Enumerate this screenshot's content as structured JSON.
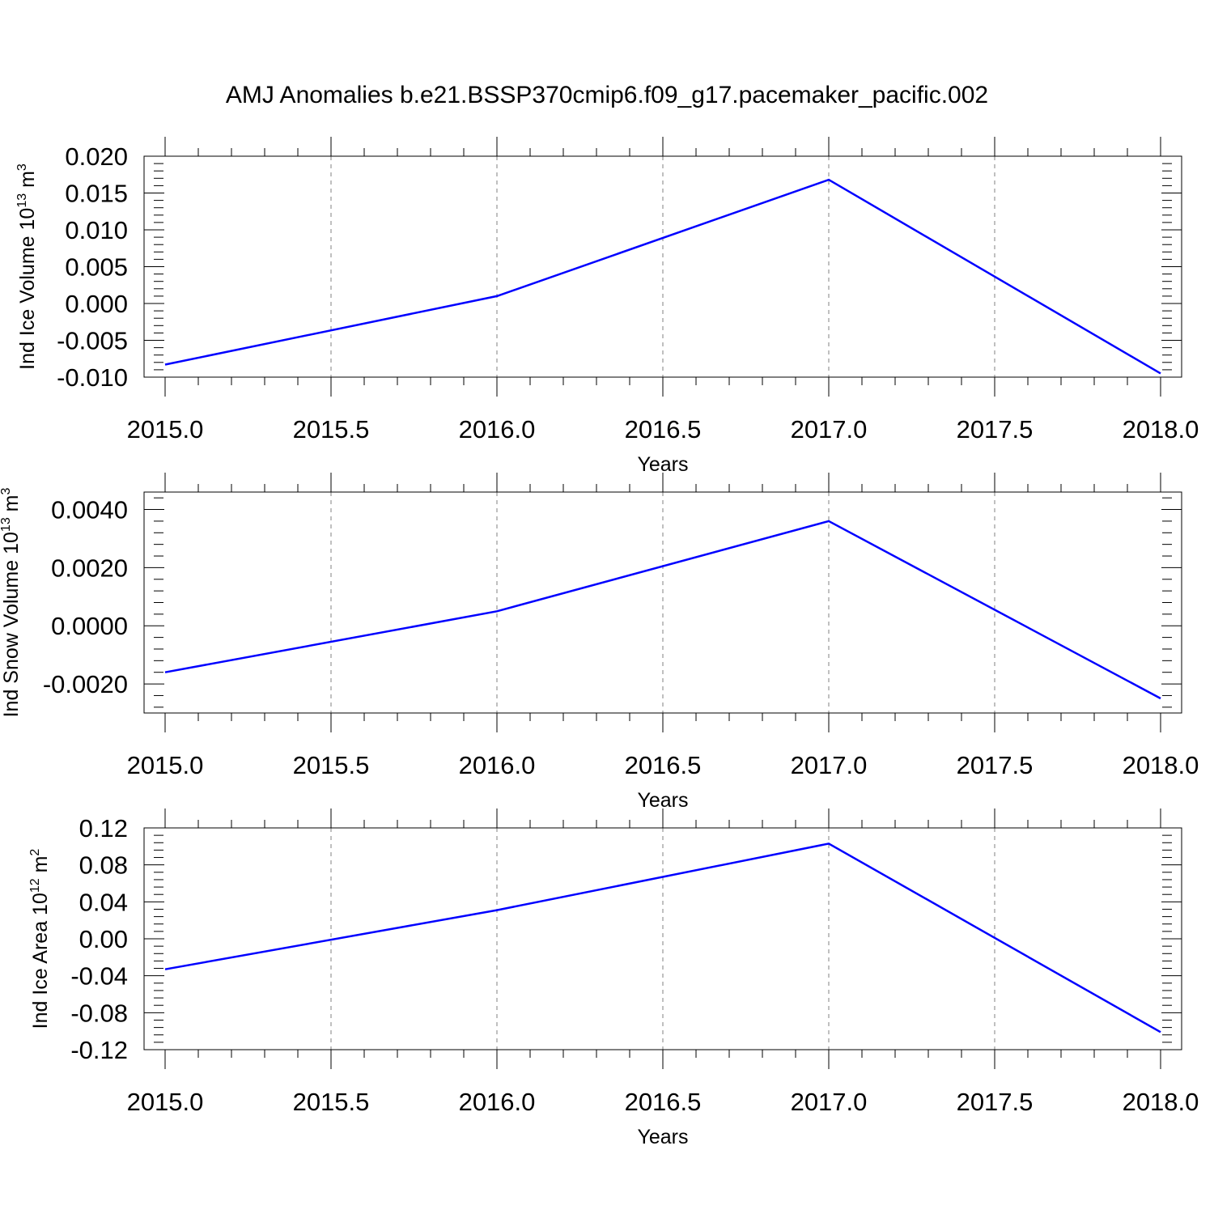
{
  "figure": {
    "title": "AMJ Anomalies b.e21.BSSP370cmip6.f09_g17.pacemaker_pacific.002"
  },
  "chart_data": [
    {
      "type": "line",
      "title": "",
      "xlabel": "Years",
      "ylabel": {
        "text": "Ind Ice Volume 10",
        "exp": "13",
        "unit": "m",
        "unit_exp": "3"
      },
      "xlim": [
        2015.0,
        2018.0
      ],
      "ylim": [
        -0.01,
        0.02
      ],
      "x_ticks": [
        "2015.0",
        "2015.5",
        "2016.0",
        "2016.5",
        "2017.0",
        "2017.5",
        "2018.0"
      ],
      "y_ticks": [
        "0.020",
        "0.015",
        "0.010",
        "0.005",
        "0.000",
        "-0.005",
        "-0.010"
      ],
      "y_tick_values": [
        0.02,
        0.015,
        0.01,
        0.005,
        0.0,
        -0.005,
        -0.01
      ],
      "grid": "dashed vertical at major x ticks",
      "legend": "none",
      "line_color": "#0000ff",
      "series": [
        {
          "x": [
            2015,
            2016,
            2017,
            2018
          ],
          "y": [
            -0.0083,
            0.001,
            0.0168,
            -0.0095
          ]
        }
      ]
    },
    {
      "type": "line",
      "title": "",
      "xlabel": "Years",
      "ylabel": {
        "text": "Ind Snow Volume 10",
        "exp": "13",
        "unit": "m",
        "unit_exp": "3"
      },
      "xlim": [
        2015.0,
        2018.0
      ],
      "ylim": [
        -0.003,
        0.0046
      ],
      "x_ticks": [
        "2015.0",
        "2015.5",
        "2016.0",
        "2016.5",
        "2017.0",
        "2017.5",
        "2018.0"
      ],
      "y_ticks": [
        "0.0040",
        "0.0020",
        "0.0000",
        "-0.0020"
      ],
      "y_tick_values": [
        0.004,
        0.002,
        0.0,
        -0.002
      ],
      "grid": "dashed vertical at major x ticks",
      "legend": "none",
      "line_color": "#0000ff",
      "series": [
        {
          "x": [
            2015,
            2016,
            2017,
            2018
          ],
          "y": [
            -0.0016,
            0.0005,
            0.0036,
            -0.0025
          ]
        }
      ]
    },
    {
      "type": "line",
      "title": "",
      "xlabel": "Years",
      "ylabel": {
        "text": "Ind Ice Area 10",
        "exp": "12",
        "unit": "m",
        "unit_exp": "2"
      },
      "xlim": [
        2015.0,
        2018.0
      ],
      "ylim": [
        -0.12,
        0.12
      ],
      "x_ticks": [
        "2015.0",
        "2015.5",
        "2016.0",
        "2016.5",
        "2017.0",
        "2017.5",
        "2018.0"
      ],
      "y_ticks": [
        "0.12",
        "0.08",
        "0.04",
        "0.00",
        "-0.04",
        "-0.08",
        "-0.12"
      ],
      "y_tick_values": [
        0.12,
        0.08,
        0.04,
        0.0,
        -0.04,
        -0.08,
        -0.12
      ],
      "grid": "dashed vertical at major x ticks",
      "legend": "none",
      "line_color": "#0000ff",
      "series": [
        {
          "x": [
            2015,
            2016,
            2017,
            2018
          ],
          "y": [
            -0.033,
            0.031,
            0.103,
            -0.101
          ]
        }
      ]
    }
  ]
}
